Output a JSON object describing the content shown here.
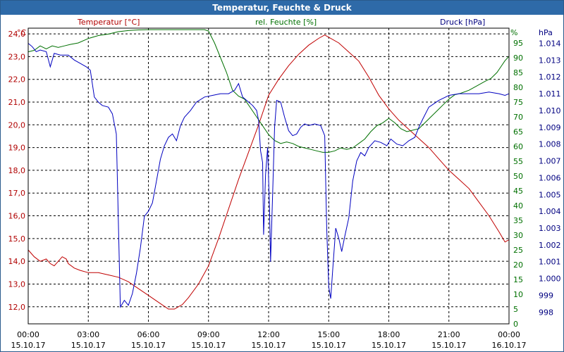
{
  "window": {
    "title": "Temperatur, Feuchte & Druck"
  },
  "chart_data": {
    "type": "line",
    "title": "Temperatur, Feuchte & Druck",
    "grid": true,
    "axes": {
      "temperature": {
        "label": "Temperatur [°C]",
        "unit": "°C",
        "range": [
          11.25,
          24.25
        ],
        "ticks": [
          12.0,
          13.0,
          14.0,
          15.0,
          16.0,
          17.0,
          18.0,
          19.0,
          20.0,
          21.0,
          22.0,
          23.0,
          24.0
        ],
        "color": "#b00000"
      },
      "humidity": {
        "label": "rel. Feuchte [%]",
        "unit": "%",
        "range": [
          0,
          100
        ],
        "ticks": [
          0,
          5,
          10,
          15,
          20,
          25,
          30,
          35,
          40,
          45,
          50,
          55,
          60,
          65,
          70,
          75,
          80,
          85,
          90,
          95
        ],
        "color": "#007000"
      },
      "pressure": {
        "label": "Druck [hPa]",
        "unit": "hPa",
        "range": [
          997.3,
          1014.9
        ],
        "ticks": [
          998,
          999,
          1000,
          1001,
          1002,
          1003,
          1004,
          1005,
          1006,
          1007,
          1008,
          1009,
          1010,
          1011,
          1012,
          1013,
          1014
        ],
        "color": "#000080"
      }
    },
    "x_ticks": [
      {
        "h": 0,
        "time": "00:00",
        "date": "15.10.17"
      },
      {
        "h": 3,
        "time": "03:00",
        "date": "15.10.17"
      },
      {
        "h": 6,
        "time": "06:00",
        "date": "15.10.17"
      },
      {
        "h": 9,
        "time": "09:00",
        "date": "15.10.17"
      },
      {
        "h": 12,
        "time": "12:00",
        "date": "15.10.17"
      },
      {
        "h": 15,
        "time": "15:00",
        "date": "15.10.17"
      },
      {
        "h": 18,
        "time": "18:00",
        "date": "15.10.17"
      },
      {
        "h": 21,
        "time": "21:00",
        "date": "15.10.17"
      },
      {
        "h": 24,
        "time": "00:00",
        "date": "16.10.17"
      }
    ],
    "series": [
      {
        "name": "Temperatur [°C]",
        "axis": "temperature",
        "color": "#c00000",
        "points": [
          [
            0,
            14.5
          ],
          [
            0.3,
            14.2
          ],
          [
            0.6,
            14.0
          ],
          [
            0.9,
            14.1
          ],
          [
            1.1,
            13.9
          ],
          [
            1.3,
            13.8
          ],
          [
            1.5,
            14.0
          ],
          [
            1.7,
            14.2
          ],
          [
            1.9,
            14.1
          ],
          [
            2.0,
            13.9
          ],
          [
            2.3,
            13.7
          ],
          [
            2.6,
            13.6
          ],
          [
            3.0,
            13.5
          ],
          [
            3.5,
            13.5
          ],
          [
            4.0,
            13.4
          ],
          [
            4.5,
            13.3
          ],
          [
            5.0,
            13.1
          ],
          [
            5.5,
            12.8
          ],
          [
            6.0,
            12.5
          ],
          [
            6.5,
            12.2
          ],
          [
            7.0,
            11.9
          ],
          [
            7.3,
            11.9
          ],
          [
            7.7,
            12.1
          ],
          [
            8.0,
            12.4
          ],
          [
            8.5,
            13.0
          ],
          [
            9.0,
            13.8
          ],
          [
            9.5,
            15.0
          ],
          [
            10.0,
            16.3
          ],
          [
            10.5,
            17.6
          ],
          [
            11.0,
            18.8
          ],
          [
            11.5,
            20.0
          ],
          [
            12.0,
            21.3
          ],
          [
            12.5,
            22.0
          ],
          [
            13.0,
            22.6
          ],
          [
            13.5,
            23.1
          ],
          [
            14.0,
            23.5
          ],
          [
            14.5,
            23.8
          ],
          [
            14.8,
            23.95
          ],
          [
            15.0,
            23.85
          ],
          [
            15.5,
            23.6
          ],
          [
            16.0,
            23.2
          ],
          [
            16.5,
            22.8
          ],
          [
            17.0,
            22.1
          ],
          [
            17.5,
            21.3
          ],
          [
            18.0,
            20.7
          ],
          [
            18.5,
            20.2
          ],
          [
            19.0,
            19.8
          ],
          [
            19.5,
            19.4
          ],
          [
            20.0,
            19.0
          ],
          [
            20.5,
            18.5
          ],
          [
            21.0,
            18.0
          ],
          [
            21.5,
            17.6
          ],
          [
            22.0,
            17.2
          ],
          [
            22.5,
            16.6
          ],
          [
            23.0,
            16.0
          ],
          [
            23.5,
            15.3
          ],
          [
            23.8,
            14.85
          ],
          [
            24.0,
            14.95
          ]
        ]
      },
      {
        "name": "rel. Feuchte [%]",
        "axis": "humidity",
        "color": "#007000",
        "points": [
          [
            0,
            92
          ],
          [
            0.3,
            92.5
          ],
          [
            0.6,
            94
          ],
          [
            0.9,
            93
          ],
          [
            1.2,
            94
          ],
          [
            1.5,
            93.5
          ],
          [
            1.8,
            94
          ],
          [
            2.1,
            94.5
          ],
          [
            2.5,
            95
          ],
          [
            3.0,
            96.5
          ],
          [
            3.5,
            97.5
          ],
          [
            4.0,
            98
          ],
          [
            4.5,
            98.8
          ],
          [
            5.0,
            99.2
          ],
          [
            5.5,
            99.4
          ],
          [
            6.0,
            99.5
          ],
          [
            7.0,
            99.5
          ],
          [
            8.0,
            99.5
          ],
          [
            8.8,
            99.5
          ],
          [
            9.0,
            99
          ],
          [
            9.3,
            95
          ],
          [
            9.6,
            90
          ],
          [
            9.9,
            85
          ],
          [
            10.2,
            79
          ],
          [
            10.5,
            77
          ],
          [
            10.8,
            76
          ],
          [
            11.1,
            73
          ],
          [
            11.4,
            70
          ],
          [
            11.7,
            67
          ],
          [
            12.0,
            64
          ],
          [
            12.3,
            62
          ],
          [
            12.6,
            61
          ],
          [
            12.9,
            61.5
          ],
          [
            13.2,
            61
          ],
          [
            13.5,
            60
          ],
          [
            13.8,
            59.5
          ],
          [
            14.1,
            59
          ],
          [
            14.4,
            58.5
          ],
          [
            14.7,
            58
          ],
          [
            15.0,
            58
          ],
          [
            15.3,
            58.5
          ],
          [
            15.6,
            59.5
          ],
          [
            15.9,
            59
          ],
          [
            16.2,
            59.5
          ],
          [
            16.5,
            61
          ],
          [
            16.8,
            62.5
          ],
          [
            17.1,
            65
          ],
          [
            17.4,
            67
          ],
          [
            17.7,
            68
          ],
          [
            18.0,
            69.5
          ],
          [
            18.3,
            68
          ],
          [
            18.6,
            66
          ],
          [
            18.9,
            65
          ],
          [
            19.2,
            65.5
          ],
          [
            19.5,
            66
          ],
          [
            19.8,
            68
          ],
          [
            20.1,
            70
          ],
          [
            20.4,
            72
          ],
          [
            20.7,
            74
          ],
          [
            21.0,
            76
          ],
          [
            21.3,
            77.5
          ],
          [
            21.6,
            78
          ],
          [
            22.0,
            79
          ],
          [
            22.4,
            80.5
          ],
          [
            22.8,
            82
          ],
          [
            23.1,
            83
          ],
          [
            23.4,
            85
          ],
          [
            23.6,
            87
          ],
          [
            23.8,
            89
          ],
          [
            24.0,
            90.5
          ]
        ]
      },
      {
        "name": "Druck [hPa]",
        "axis": "pressure",
        "color": "#0000c0",
        "points": [
          [
            0,
            1014.0
          ],
          [
            0.2,
            1013.8
          ],
          [
            0.4,
            1013.5
          ],
          [
            0.6,
            1013.6
          ],
          [
            0.9,
            1013.5
          ],
          [
            1.1,
            1012.6
          ],
          [
            1.3,
            1013.4
          ],
          [
            1.6,
            1013.3
          ],
          [
            2.0,
            1013.3
          ],
          [
            2.3,
            1013.0
          ],
          [
            2.6,
            1012.8
          ],
          [
            2.9,
            1012.6
          ],
          [
            3.1,
            1012.4
          ],
          [
            3.3,
            1010.8
          ],
          [
            3.5,
            1010.5
          ],
          [
            3.7,
            1010.3
          ],
          [
            4.0,
            1010.2
          ],
          [
            4.2,
            1009.8
          ],
          [
            4.4,
            1008.6
          ],
          [
            4.6,
            998.3
          ],
          [
            4.8,
            998.7
          ],
          [
            5.0,
            998.4
          ],
          [
            5.2,
            999.1
          ],
          [
            5.4,
            1000.3
          ],
          [
            5.6,
            1001.8
          ],
          [
            5.8,
            1003.7
          ],
          [
            6.0,
            1004.0
          ],
          [
            6.2,
            1004.5
          ],
          [
            6.4,
            1005.8
          ],
          [
            6.6,
            1007.1
          ],
          [
            6.8,
            1007.9
          ],
          [
            7.0,
            1008.4
          ],
          [
            7.2,
            1008.6
          ],
          [
            7.4,
            1008.2
          ],
          [
            7.6,
            1009.1
          ],
          [
            7.8,
            1009.6
          ],
          [
            8.1,
            1010.0
          ],
          [
            8.4,
            1010.5
          ],
          [
            8.8,
            1010.8
          ],
          [
            9.2,
            1010.9
          ],
          [
            9.6,
            1011.0
          ],
          [
            10.0,
            1011.0
          ],
          [
            10.3,
            1011.2
          ],
          [
            10.5,
            1011.6
          ],
          [
            10.7,
            1010.8
          ],
          [
            11.0,
            1010.5
          ],
          [
            11.2,
            1010.3
          ],
          [
            11.4,
            1010.0
          ],
          [
            11.5,
            1009.4
          ],
          [
            11.6,
            1007.6
          ],
          [
            11.7,
            1006.9
          ],
          [
            11.75,
            1002.6
          ],
          [
            11.85,
            1006.2
          ],
          [
            11.95,
            1007.8
          ],
          [
            12.05,
            1004.0
          ],
          [
            12.1,
            1001.0
          ],
          [
            12.2,
            1005.0
          ],
          [
            12.3,
            1009.0
          ],
          [
            12.4,
            1010.6
          ],
          [
            12.6,
            1010.5
          ],
          [
            12.8,
            1009.6
          ],
          [
            13.0,
            1008.8
          ],
          [
            13.2,
            1008.5
          ],
          [
            13.4,
            1008.6
          ],
          [
            13.6,
            1009.0
          ],
          [
            13.8,
            1009.2
          ],
          [
            14.0,
            1009.1
          ],
          [
            14.3,
            1009.2
          ],
          [
            14.6,
            1009.1
          ],
          [
            14.8,
            1008.5
          ],
          [
            14.9,
            1003.0
          ],
          [
            15.0,
            999.5
          ],
          [
            15.1,
            998.8
          ],
          [
            15.2,
            1000.5
          ],
          [
            15.35,
            1003.0
          ],
          [
            15.5,
            1002.4
          ],
          [
            15.65,
            1001.6
          ],
          [
            15.8,
            1002.5
          ],
          [
            16.0,
            1003.6
          ],
          [
            16.2,
            1005.8
          ],
          [
            16.4,
            1007.0
          ],
          [
            16.6,
            1007.5
          ],
          [
            16.8,
            1007.3
          ],
          [
            17.0,
            1007.8
          ],
          [
            17.3,
            1008.2
          ],
          [
            17.6,
            1008.1
          ],
          [
            17.9,
            1007.9
          ],
          [
            18.1,
            1008.3
          ],
          [
            18.4,
            1008.0
          ],
          [
            18.7,
            1007.9
          ],
          [
            19.0,
            1008.2
          ],
          [
            19.3,
            1008.4
          ],
          [
            19.5,
            1009.0
          ],
          [
            19.7,
            1009.5
          ],
          [
            20.0,
            1010.2
          ],
          [
            20.5,
            1010.6
          ],
          [
            21.0,
            1010.9
          ],
          [
            21.5,
            1011.0
          ],
          [
            22.0,
            1011.0
          ],
          [
            22.5,
            1011.0
          ],
          [
            23.0,
            1011.1
          ],
          [
            23.5,
            1011.0
          ],
          [
            23.8,
            1010.9
          ],
          [
            24.0,
            1011.0
          ]
        ]
      }
    ]
  }
}
